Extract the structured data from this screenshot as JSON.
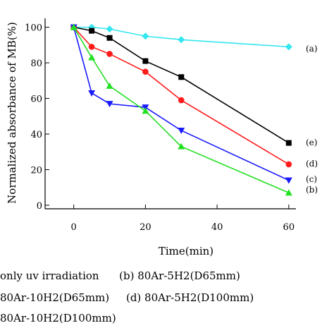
{
  "chart_data": {
    "type": "line",
    "title": "",
    "xlabel": "Time(min)",
    "ylabel": "Normalized absorbance of MB(%)",
    "xlim": [
      -8,
      62
    ],
    "ylim": [
      -2,
      105
    ],
    "xticks": [
      0,
      20,
      40,
      60
    ],
    "yticks": [
      0,
      20,
      40,
      60,
      80,
      100
    ],
    "x": [
      0,
      5,
      10,
      20,
      30,
      60
    ],
    "grid": false,
    "series": [
      {
        "tag": "(a)",
        "color": "#33e6f0",
        "marker": "diamond",
        "values": [
          100,
          100,
          99,
          95,
          93,
          89
        ]
      },
      {
        "tag": "(e)",
        "color": "#000000",
        "marker": "square",
        "values": [
          100,
          98,
          94,
          81,
          72,
          35
        ]
      },
      {
        "tag": "(d)",
        "color": "#ff1a1a",
        "marker": "circle",
        "values": [
          100,
          89,
          85,
          75,
          59,
          23
        ]
      },
      {
        "tag": "(c)",
        "color": "#1a1aff",
        "marker": "triangle-down",
        "values": [
          100,
          63,
          57,
          55,
          42,
          14
        ]
      },
      {
        "tag": "(b)",
        "color": "#22e022",
        "marker": "triangle-up",
        "values": [
          100,
          83,
          67,
          53,
          33,
          7
        ]
      }
    ]
  },
  "legend": {
    "lines": [
      "only uv irradiation      (b) 80Ar-5H2(D65mm)",
      "80Ar-10H2(D65mm)     (d) 80Ar-5H2(D100mm)",
      "80Ar-10H2(D100mm)"
    ]
  }
}
